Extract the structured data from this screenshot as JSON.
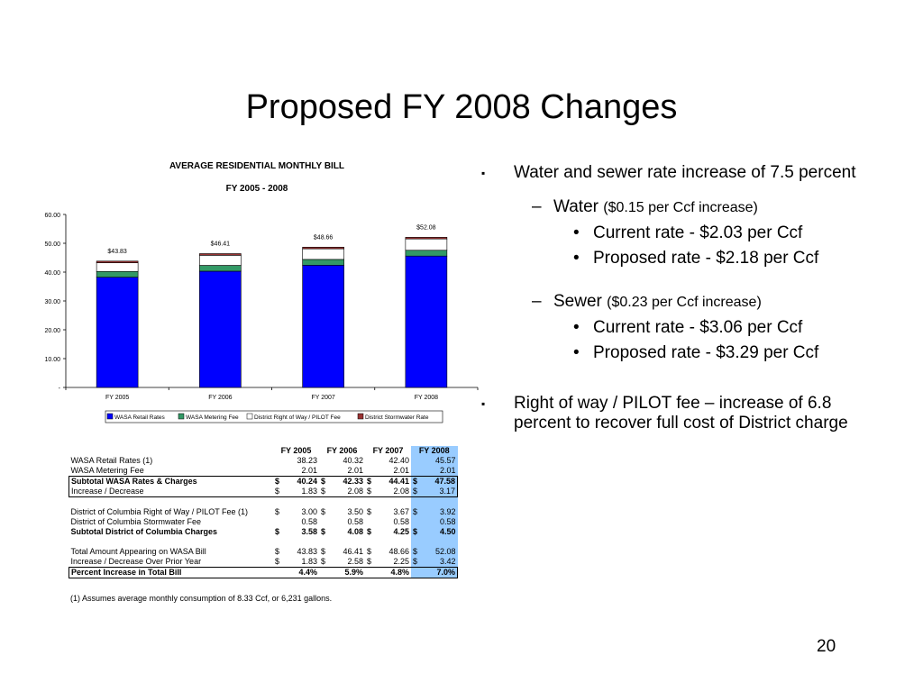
{
  "slide": {
    "title": "Proposed FY 2008 Changes",
    "page_number": "20"
  },
  "chart_data": {
    "type": "bar",
    "stacked": true,
    "title": "AVERAGE RESIDENTIAL MONTHLY BILL",
    "subtitle": "FY 2005 - 2008",
    "categories": [
      "FY 2005",
      "FY 2006",
      "FY 2007",
      "FY 2008"
    ],
    "series": [
      {
        "name": "WASA Retail Rates",
        "color": "#0000ff",
        "values": [
          38.23,
          40.32,
          42.4,
          45.57
        ]
      },
      {
        "name": "WASA Metering Fee",
        "color": "#339966",
        "values": [
          2.01,
          2.01,
          2.01,
          2.01
        ]
      },
      {
        "name": "District Right of Way / PILOT Fee",
        "color": "#ffffff",
        "values": [
          3.0,
          3.5,
          3.67,
          3.92
        ]
      },
      {
        "name": "District Stormwater Rate",
        "color": "#993333",
        "values": [
          0.58,
          0.58,
          0.58,
          0.58
        ]
      }
    ],
    "totals_labels": [
      "$43.83",
      "$46.41",
      "$48.66",
      "$52.08"
    ],
    "y_ticks": [
      "-",
      "10.00",
      "20.00",
      "30.00",
      "40.00",
      "50.00",
      "60.00"
    ],
    "ylim": [
      0,
      60
    ],
    "legend_position": "bottom",
    "grid": false
  },
  "table": {
    "headers": [
      "FY 2005",
      "FY 2006",
      "FY 2007",
      "FY 2008"
    ],
    "rows": [
      {
        "label": "WASA Retail Rates (1)",
        "dollar": [
          "",
          "",
          "",
          ""
        ],
        "values": [
          "38.23",
          "40.32",
          "42.40",
          "45.57"
        ]
      },
      {
        "label": "WASA Metering Fee",
        "dollar": [
          "",
          "",
          "",
          ""
        ],
        "values": [
          "2.01",
          "2.01",
          "2.01",
          "2.01"
        ]
      },
      {
        "label": "Subtotal WASA Rates & Charges",
        "dollar": [
          "$",
          "$",
          "$",
          "$"
        ],
        "values": [
          "40.24",
          "42.33",
          "44.41",
          "47.58"
        ]
      },
      {
        "label": "Increase / Decrease",
        "dollar": [
          "$",
          "$",
          "$",
          "$"
        ],
        "values": [
          "1.83",
          "2.08",
          "2.08",
          "3.17"
        ]
      },
      {
        "label": "District of Columbia Right of Way / PILOT Fee (1)",
        "dollar": [
          "$",
          "$",
          "$",
          "$"
        ],
        "values": [
          "3.00",
          "3.50",
          "3.67",
          "3.92"
        ]
      },
      {
        "label": "District of Columbia Stormwater Fee",
        "dollar": [
          "",
          "",
          "",
          ""
        ],
        "values": [
          "0.58",
          "0.58",
          "0.58",
          "0.58"
        ]
      },
      {
        "label": "Subtotal District of Columbia Charges",
        "dollar": [
          "$",
          "$",
          "$",
          "$"
        ],
        "values": [
          "3.58",
          "4.08",
          "4.25",
          "4.50"
        ]
      },
      {
        "label": "Total Amount Appearing on WASA Bill",
        "dollar": [
          "$",
          "$",
          "$",
          "$"
        ],
        "values": [
          "43.83",
          "46.41",
          "48.66",
          "52.08"
        ]
      },
      {
        "label": "Increase / Decrease Over Prior Year",
        "dollar": [
          "$",
          "$",
          "$",
          "$"
        ],
        "values": [
          "1.83",
          "2.58",
          "2.25",
          "3.42"
        ]
      },
      {
        "label": "Percent Increase in Total Bill",
        "dollar": [
          "",
          "",
          "",
          ""
        ],
        "values": [
          "4.4%",
          "5.9%",
          "4.8%",
          "7.0%"
        ]
      }
    ],
    "footnote": "(1) Assumes average monthly consumption of 8.33 Ccf, or 6,231 gallons."
  },
  "bullets": {
    "b1_marker": "▪",
    "b1_text": "Water and sewer rate increase of 7.5 percent",
    "dash": "–",
    "dot": "•",
    "water_head": "Water",
    "water_note": "($0.15 per Ccf increase)",
    "water_current": "Current rate - $2.03 per Ccf",
    "water_proposed": "Proposed rate - $2.18 per Ccf",
    "sewer_head": "Sewer",
    "sewer_note": "($0.23 per Ccf increase)",
    "sewer_current": "Current rate - $3.06 per Ccf",
    "sewer_proposed": "Proposed rate - $3.29 per Ccf",
    "b2_text": "Right of way / PILOT fee – increase of 6.8 percent to recover full cost of District charge"
  }
}
